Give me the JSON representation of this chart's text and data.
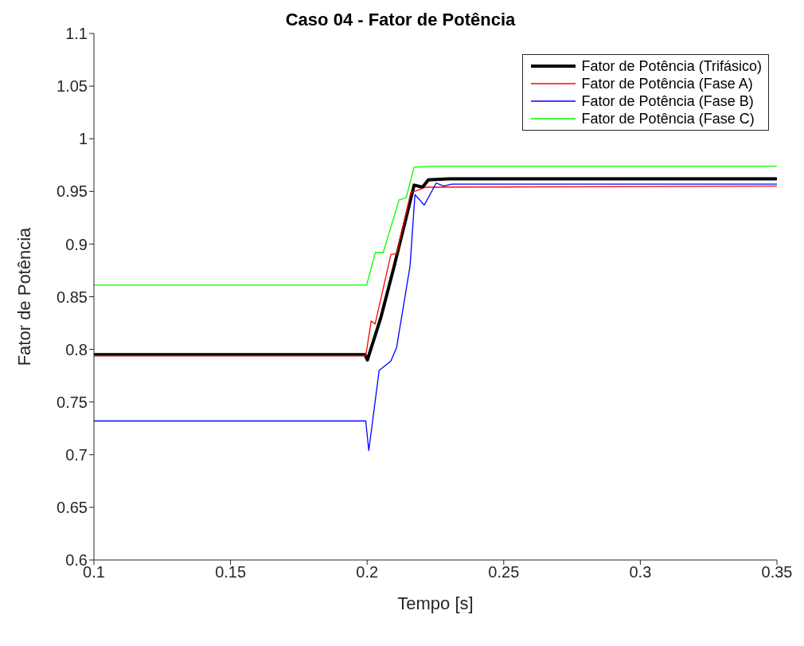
{
  "chart_data": {
    "type": "line",
    "title": "Caso 04 - Fator de Potência",
    "xlabel": "Tempo [s]",
    "ylabel": "Fator de Potência",
    "xlim": [
      0.1,
      0.35
    ],
    "xticks": [
      0.1,
      0.15,
      0.2,
      0.25,
      0.3,
      0.35
    ],
    "ylim": [
      0.6,
      1.1
    ],
    "yticks": [
      0.6,
      0.65,
      0.7,
      0.75,
      0.8,
      0.85,
      0.9,
      0.95,
      1,
      1.05,
      1.1
    ],
    "legend": "top right",
    "marker": "none",
    "line_style": "solid",
    "series": [
      {
        "name": "Fator de Potência (Trifásico)",
        "color": "#000000",
        "x": [
          0.1,
          0.1992,
          0.2001,
          0.205,
          0.21,
          0.2172,
          0.2203,
          0.2224,
          0.23,
          0.35
        ],
        "values": [
          0.795,
          0.795,
          0.79,
          0.83,
          0.88,
          0.956,
          0.954,
          0.961,
          0.962,
          0.962
        ]
      },
      {
        "name": "Fator de Potência (Fase A)",
        "color": "#ff0000",
        "x": [
          0.1,
          0.1995,
          0.2015,
          0.2029,
          0.2087,
          0.2108,
          0.216,
          0.2185,
          0.2215,
          0.35
        ],
        "values": [
          0.794,
          0.794,
          0.827,
          0.824,
          0.89,
          0.891,
          0.949,
          0.951,
          0.954,
          0.955
        ]
      },
      {
        "name": "Fator de Potência (Fase B)",
        "color": "#0000ff",
        "x": [
          0.1,
          0.1995,
          0.2006,
          0.2044,
          0.2087,
          0.2108,
          0.2157,
          0.2175,
          0.2209,
          0.2253,
          0.228,
          0.231,
          0.35
        ],
        "values": [
          0.732,
          0.732,
          0.704,
          0.78,
          0.789,
          0.802,
          0.879,
          0.947,
          0.937,
          0.958,
          0.955,
          0.957,
          0.957
        ]
      },
      {
        "name": "Fator de Potência (Fase C)",
        "color": "#00ff00",
        "x": [
          0.1,
          0.1998,
          0.203,
          0.2059,
          0.2117,
          0.2143,
          0.2172,
          0.2245,
          0.35
        ],
        "values": [
          0.861,
          0.861,
          0.892,
          0.892,
          0.942,
          0.944,
          0.973,
          0.974,
          0.974
        ]
      }
    ]
  }
}
